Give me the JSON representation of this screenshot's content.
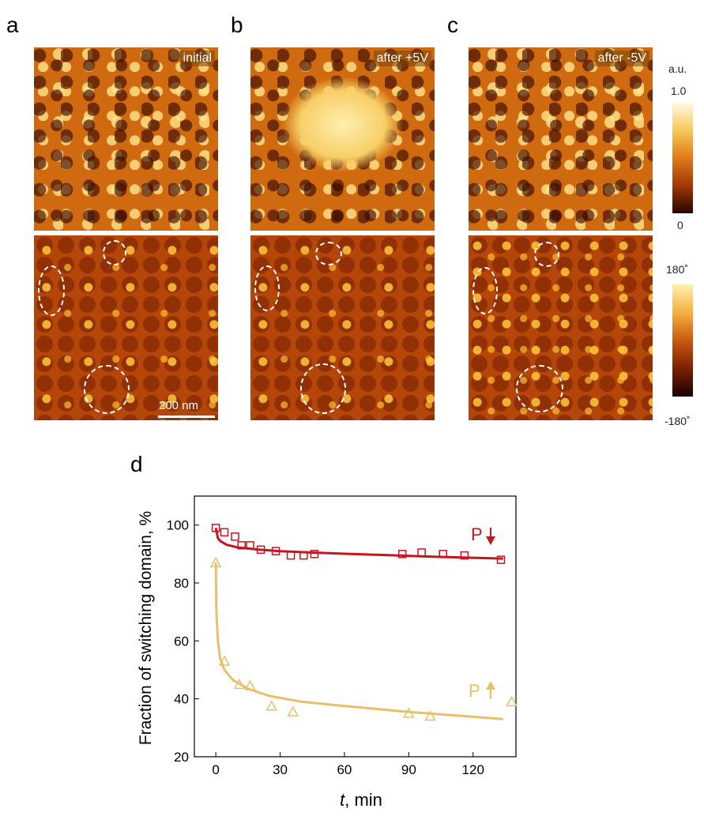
{
  "panel_labels": {
    "a": "a",
    "b": "b",
    "c": "c",
    "d": "d"
  },
  "image_tags": {
    "a": "initial",
    "b": "after +5V",
    "c": "after -5V"
  },
  "scale_bar": "200 nm",
  "colorbar_amp": {
    "unit": "a.u.",
    "max": "1.0",
    "min": "0"
  },
  "colorbar_phase": {
    "max": "180˚",
    "min": "-180˚"
  },
  "colors": {
    "red": "#c8141e",
    "yellow": "#e8c06a",
    "amp_mid": "#d06a10",
    "phase_mid": "#b5460a"
  },
  "chart_data": {
    "type": "scatter",
    "xlabel": "t,  min",
    "ylabel": "Fraction of switching domain, %",
    "xlim": [
      -10,
      140
    ],
    "ylim": [
      20,
      110
    ],
    "xticks": [
      0,
      30,
      60,
      90,
      120
    ],
    "yticks": [
      20,
      40,
      60,
      80,
      100
    ],
    "series": [
      {
        "name": "P ↓",
        "color": "#c8141e",
        "marker": "square",
        "x": [
          0,
          4,
          9,
          12,
          16,
          21,
          28,
          35,
          41,
          46,
          87,
          96,
          106,
          116,
          133
        ],
        "y": [
          99,
          97.5,
          96,
          93,
          93,
          91.5,
          91,
          89.5,
          89.5,
          90,
          90,
          90.5,
          90,
          89.5,
          88
        ],
        "fit": {
          "x": [
            0,
            1,
            2,
            5,
            10,
            20,
            30,
            45,
            60,
            80,
            100,
            120,
            134
          ],
          "y": [
            99,
            95.5,
            94.5,
            93.2,
            92.3,
            91.5,
            91,
            90.5,
            90.1,
            89.6,
            89.1,
            88.7,
            88.4
          ]
        }
      },
      {
        "name": "P ↑",
        "color": "#e8c06a",
        "marker": "triangle",
        "x": [
          0,
          4,
          11,
          16,
          26,
          36,
          90,
          100,
          138
        ],
        "y": [
          87,
          53,
          45,
          44.5,
          37.5,
          35.5,
          35,
          34,
          39
        ],
        "fit": {
          "x": [
            0,
            0.3,
            1,
            2,
            4,
            8,
            15,
            25,
            40,
            60,
            90,
            120,
            134
          ],
          "y": [
            87,
            70,
            60,
            54,
            50,
            46.5,
            43.5,
            41,
            39,
            37.5,
            35.5,
            33.8,
            33
          ]
        }
      }
    ]
  }
}
